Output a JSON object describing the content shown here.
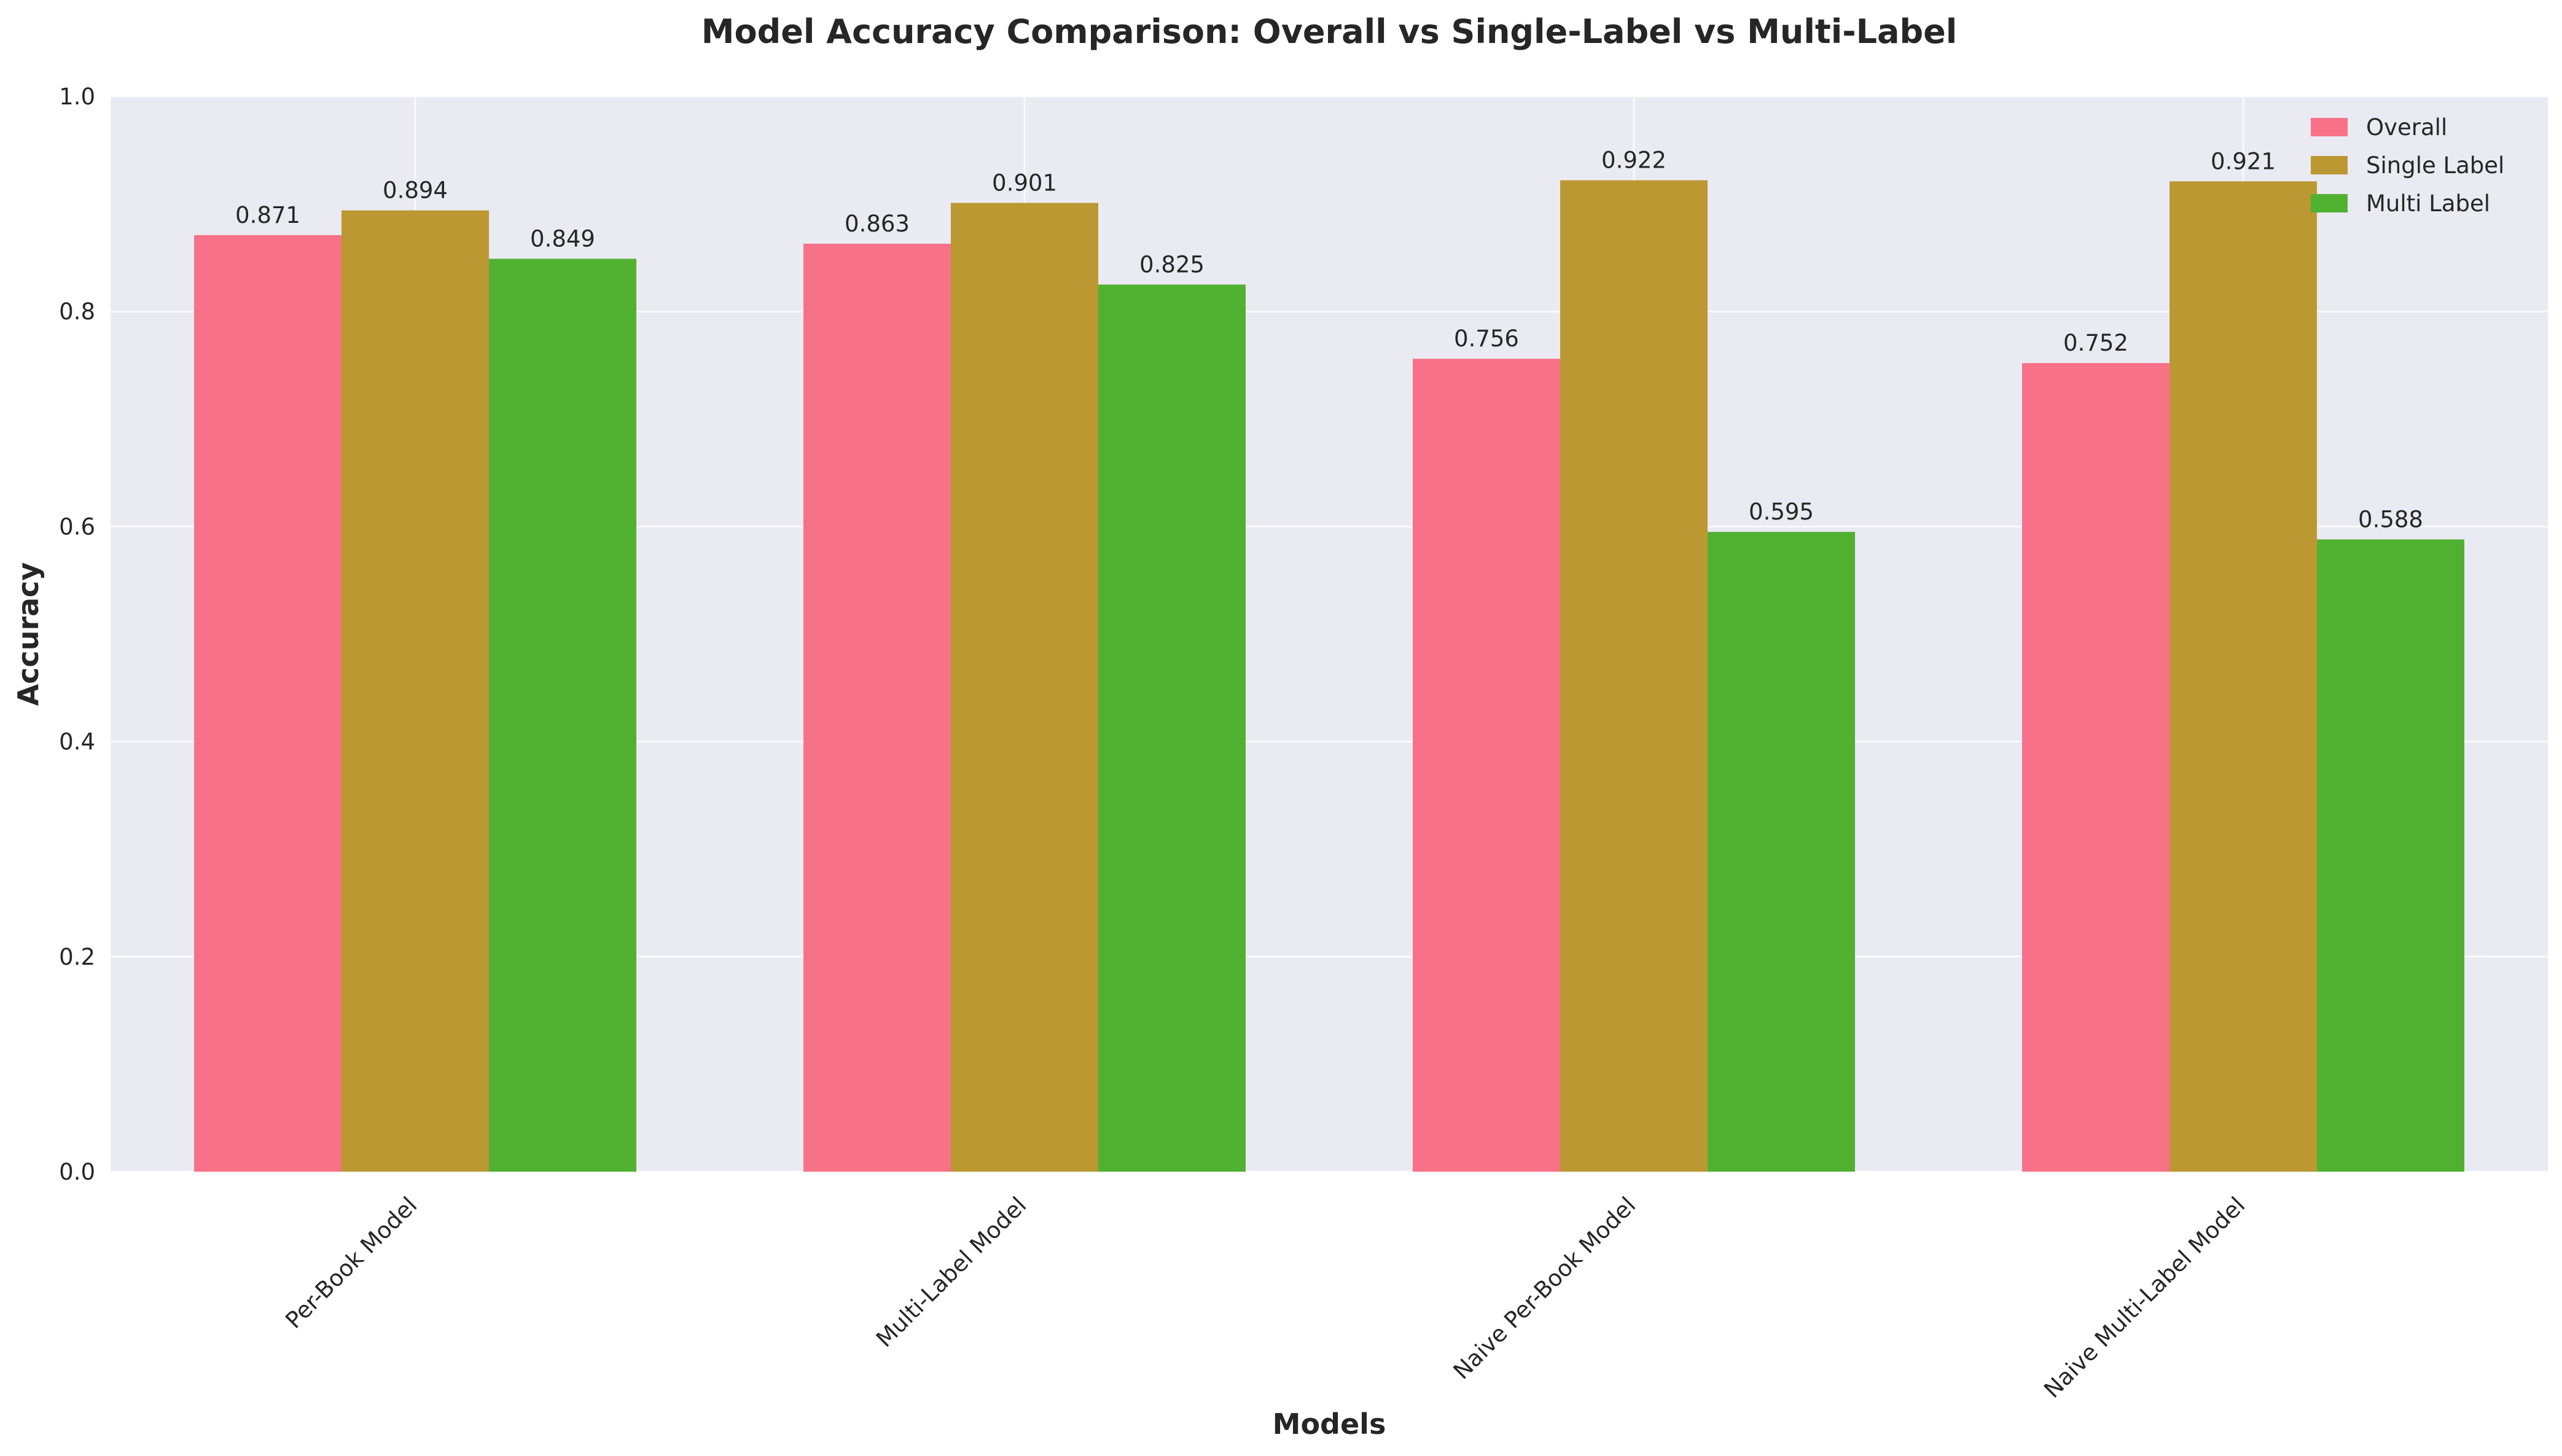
{
  "chart_data": {
    "type": "bar",
    "title": "Model Accuracy Comparison: Overall vs Single-Label vs Multi-Label",
    "xlabel": "Models",
    "ylabel": "Accuracy",
    "ylim": [
      0,
      1.0
    ],
    "yticks": [
      "0.0",
      "0.2",
      "0.4",
      "0.6",
      "0.8",
      "1.0"
    ],
    "categories": [
      "Per-Book Model",
      "Multi-Label Model",
      "Naive Per-Book Model",
      "Naive Multi-Label Model"
    ],
    "series": [
      {
        "name": "Overall",
        "color": "#f77189",
        "values": [
          0.871,
          0.863,
          0.756,
          0.752
        ],
        "labels": [
          "0.871",
          "0.863",
          "0.756",
          "0.752"
        ]
      },
      {
        "name": "Single Label",
        "color": "#bb9832",
        "values": [
          0.894,
          0.901,
          0.922,
          0.921
        ],
        "labels": [
          "0.894",
          "0.901",
          "0.922",
          "0.921"
        ]
      },
      {
        "name": "Multi Label",
        "color": "#50b131",
        "values": [
          0.849,
          0.825,
          0.595,
          0.588
        ],
        "labels": [
          "0.849",
          "0.825",
          "0.595",
          "0.588"
        ]
      }
    ],
    "grid": true,
    "legend_position": "top-right",
    "background": "#eaeaf2"
  }
}
